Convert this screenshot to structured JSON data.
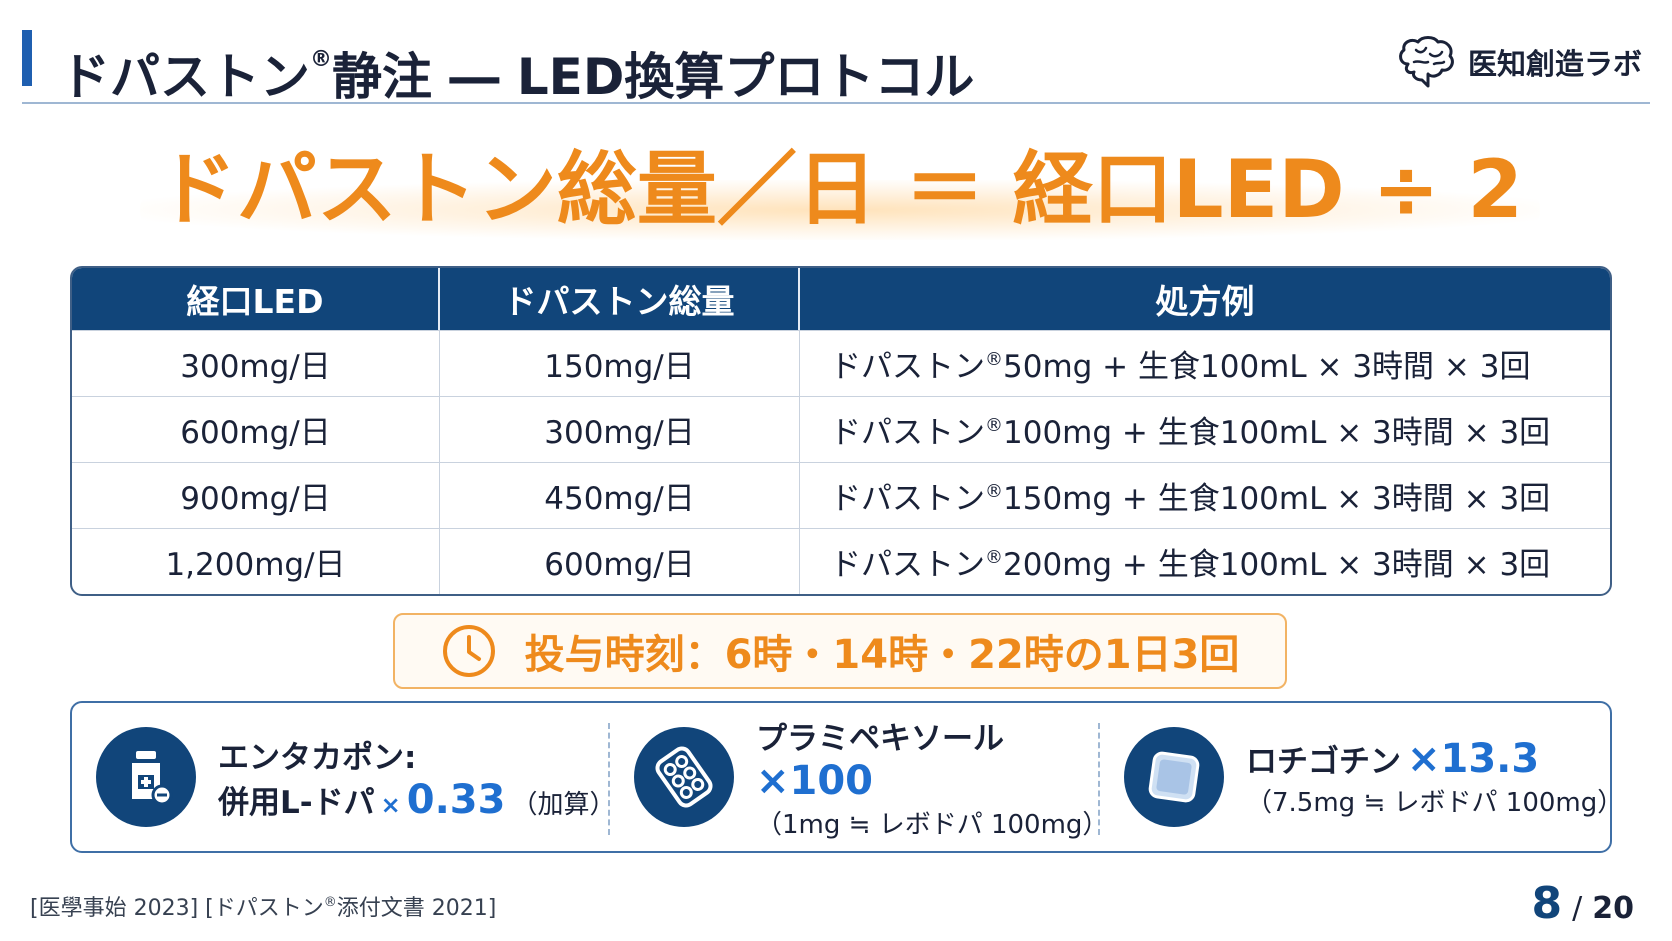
{
  "header": {
    "title_main": "ドパストン",
    "title_reg": "®",
    "title_rest": "静注 ― LED換算プロトコル",
    "brand_name": "医知創造ラボ",
    "accent_color": "#1f5fb0"
  },
  "formula": {
    "text": "ドパストン総量／日 ＝ 経口LED ÷ 2",
    "color": "#ee8a1c"
  },
  "table": {
    "headers": [
      "経口LED",
      "ドパストン総量",
      "処方例"
    ],
    "rows": [
      {
        "led": "300mg/日",
        "total": "150mg/日",
        "rx_pre": "ドパストン",
        "rx_reg": "®",
        "rx_post": "50mg + 生食100mL × 3時間 × 3回"
      },
      {
        "led": "600mg/日",
        "total": "300mg/日",
        "rx_pre": "ドパストン",
        "rx_reg": "®",
        "rx_post": "100mg + 生食100mL × 3時間 × 3回"
      },
      {
        "led": "900mg/日",
        "total": "450mg/日",
        "rx_pre": "ドパストン",
        "rx_reg": "®",
        "rx_post": "150mg + 生食100mL × 3時間 × 3回"
      },
      {
        "led": "1,200mg/日",
        "total": "600mg/日",
        "rx_pre": "ドパストン",
        "rx_reg": "®",
        "rx_post": "200mg + 生食100mL × 3時間 × 3回"
      }
    ]
  },
  "timing": {
    "icon": "clock-icon",
    "text": "投与時刻：6時・14時・22時の1日3回"
  },
  "conversions": [
    {
      "icon": "medicine-bottle-icon",
      "name": "エンタカポン:",
      "line2_pre": "併用L-ドパ",
      "line2_x": "×",
      "factor": "0.33",
      "line2_post": "（加算）"
    },
    {
      "icon": "pill-blister-icon",
      "name": "プラミペキソール",
      "factor": "×100",
      "note": "（1mg ≒ レボドパ 100mg）"
    },
    {
      "icon": "patch-icon",
      "name": "ロチゴチン",
      "factor": "×13.3",
      "note": "（7.5mg ≒ レボドパ 100mg）"
    }
  ],
  "footer": {
    "ref_pre": "[医學事始 2023] [ドパストン",
    "ref_reg": "®",
    "ref_post": "添付文書 2021]",
    "page_current": "8",
    "page_sep": "/",
    "page_total": "20"
  }
}
